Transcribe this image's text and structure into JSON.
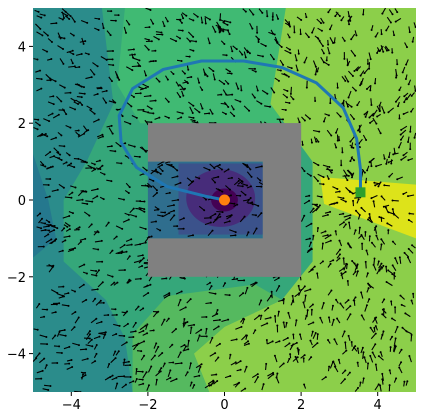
{
  "chart_data": {
    "type": "path",
    "xlim": [
      -5,
      5
    ],
    "ylim": [
      -5,
      5
    ],
    "xticks": [
      {
        "value": -4,
        "label": "−4"
      },
      {
        "value": -2,
        "label": "−2"
      },
      0,
      2,
      4
    ],
    "yticks": [
      {
        "value": -4,
        "label": "−4"
      },
      {
        "value": -2,
        "label": "−2"
      },
      0,
      2,
      4
    ],
    "series": [
      {
        "color": "#1f77b4",
        "x": [
          0,
          -0.5,
          -1.5,
          -2.3,
          -2.7,
          -2.75,
          -2.4,
          -1.6,
          -0.6,
          0.5,
          1.5,
          2.4,
          3.1,
          3.45,
          3.55,
          3.55
        ],
        "y": [
          0,
          0.1,
          0.35,
          0.85,
          1.5,
          2.2,
          2.9,
          3.4,
          3.62,
          3.62,
          3.45,
          3.05,
          2.4,
          1.6,
          0.8,
          0.2
        ]
      }
    ],
    "start": {
      "x": 0,
      "y": 0,
      "color": "#ff7f0e"
    },
    "goal": {
      "x": 3.55,
      "y": 0.2,
      "color": "#2ca02c"
    },
    "obstacle": {
      "color": "#808080",
      "rects": [
        [
          -2,
          1,
          2,
          2
        ],
        [
          1,
          -2,
          2,
          2
        ],
        [
          -2,
          -2,
          2,
          -1
        ]
      ]
    }
  }
}
